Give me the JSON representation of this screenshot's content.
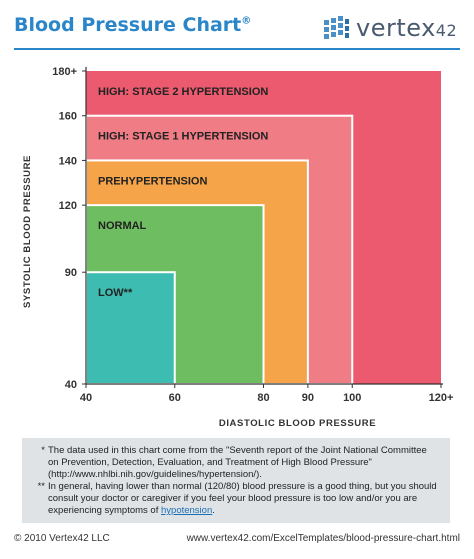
{
  "header": {
    "title": "Blood Pressure Chart",
    "title_mark": "®",
    "logo_text": "vertex",
    "logo_num": "42"
  },
  "chart_data": {
    "type": "area",
    "title": "Blood Pressure Chart",
    "xlabel": "DIASTOLIC BLOOD PRESSURE",
    "ylabel": "SYSTOLIC BLOOD PRESSURE",
    "xlim": [
      40,
      120
    ],
    "ylim": [
      40,
      180
    ],
    "x_ticks": [
      "40",
      "60",
      "80",
      "90",
      "100",
      "120+"
    ],
    "x_tick_values": [
      40,
      60,
      80,
      90,
      100,
      120
    ],
    "y_ticks": [
      "40",
      "90",
      "120",
      "140",
      "160",
      "180+"
    ],
    "y_tick_values": [
      40,
      90,
      120,
      140,
      160,
      180
    ],
    "categories": [
      {
        "name": "HIGH: STAGE 2 HYPERTENSION",
        "x_max": 120,
        "y_max": 180,
        "color": "#eb5a6e"
      },
      {
        "name": "HIGH: STAGE 1 HYPERTENSION",
        "x_max": 100,
        "y_max": 160,
        "color": "#f07c86"
      },
      {
        "name": "PREHYPERTENSION",
        "x_max": 90,
        "y_max": 140,
        "color": "#f5a44a"
      },
      {
        "name": "NORMAL",
        "x_max": 80,
        "y_max": 120,
        "color": "#6fbd61"
      },
      {
        "name": "LOW**",
        "x_max": 60,
        "y_max": 90,
        "color": "#3dbdb1"
      }
    ]
  },
  "notes": [
    {
      "marker": "*",
      "text": "The data used in this chart come from the \"Seventh report of the Joint National Committee on Prevention, Detection, Evaluation, and Treatment of High Blood Pressure\" (http://www.nhlbi.nih.gov/guidelines/hypertension/).",
      "link": ""
    },
    {
      "marker": "**",
      "text": "In general, having lower than normal (120/80) blood pressure is a good thing, but you should consult your doctor or caregiver if you feel your blood pressure is too low and/or you are experiencing symptoms of ",
      "link": "hypotension",
      "suffix": "."
    }
  ],
  "footer": {
    "copyright": "© 2010 Vertex42 LLC",
    "url": "www.vertex42.com/ExcelTemplates/blood-pressure-chart.html"
  }
}
